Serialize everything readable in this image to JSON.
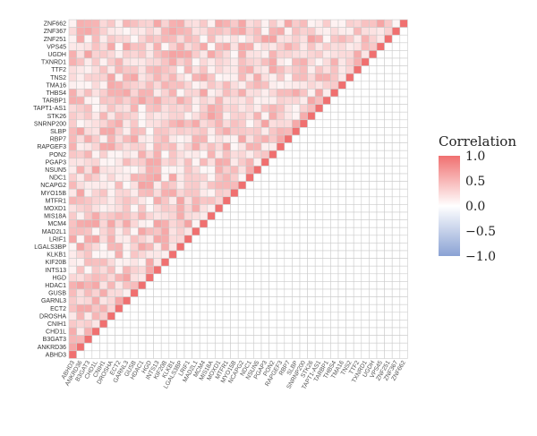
{
  "chart_data": {
    "type": "heatmap",
    "title": "",
    "xlabel": "",
    "ylabel": "",
    "genes": [
      "ABHD3",
      "ANKRD36",
      "B3GAT3",
      "CHD1L",
      "CNIH1",
      "DROSHA",
      "ECT2",
      "GARNL3",
      "GUSB",
      "HDAC1",
      "HGD",
      "INTS13",
      "KIF20B",
      "KLKB1",
      "LGALS3BP",
      "LRIF1",
      "MAD2L1",
      "MCM4",
      "MIS18A",
      "MOXD1",
      "MTFR1",
      "MYO15B",
      "NCAPG2",
      "NDC1",
      "NSUN5",
      "PGAP3",
      "PON2",
      "RAPGEF3",
      "RBP7",
      "SLBP",
      "SNRNP200",
      "STK26",
      "TAPT1-AS1",
      "TARBP1",
      "THBS4",
      "TMA16",
      "TNS2",
      "TTF2",
      "TXNRD1",
      "UGDH",
      "VPS45",
      "ZNF251",
      "ZNF367",
      "ZNF662"
    ],
    "diagonal_value": 1.0,
    "typical_off_diagonal_range": [
      0.05,
      0.65
    ],
    "legend": {
      "title": "Correlation",
      "ticks": [
        "1.0",
        "0.5",
        "0.0",
        "−0.5",
        "−1.0"
      ],
      "tick_values": [
        1.0,
        0.5,
        0.0,
        -0.5,
        -1.0
      ],
      "range": [
        -1.0,
        1.0
      ],
      "placement": "right"
    },
    "colors": {
      "high": "#f07070",
      "mid": "#ffffff",
      "low": "#8aa2d4",
      "grid": "#cccccc",
      "text": "#333333"
    },
    "grid": true
  }
}
